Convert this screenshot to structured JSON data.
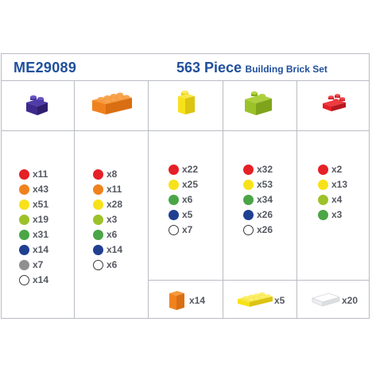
{
  "header": {
    "code": "ME29089",
    "title_big": "563 Piece",
    "title_small": "Building Brick Set"
  },
  "colors": {
    "red": "#e52027",
    "orange": "#f0821e",
    "yellow": "#f7e21a",
    "lime": "#9cc22a",
    "green": "#4aa546",
    "navy": "#1f3f91",
    "gray": "#8f8f8f",
    "white": "#ffffff",
    "purple": "#3e2a8c",
    "title_blue": "#1f4f9c"
  },
  "columns": [
    {
      "brick": "purple-2x2-brick",
      "counts": [
        {
          "color": "red",
          "label": "x11"
        },
        {
          "color": "orange",
          "label": "x43"
        },
        {
          "color": "yellow",
          "label": "x51"
        },
        {
          "color": "lime",
          "label": "x19"
        },
        {
          "color": "green",
          "label": "x31"
        },
        {
          "color": "navy",
          "label": "x14"
        },
        {
          "color": "gray",
          "label": "x7"
        },
        {
          "color": "white",
          "label": "x14"
        }
      ]
    },
    {
      "brick": "orange-2x4-brick",
      "counts": [
        {
          "color": "red",
          "label": "x8"
        },
        {
          "color": "orange",
          "label": "x11"
        },
        {
          "color": "yellow",
          "label": "x28"
        },
        {
          "color": "lime",
          "label": "x3"
        },
        {
          "color": "green",
          "label": "x6"
        },
        {
          "color": "navy",
          "label": "x14"
        },
        {
          "color": "white",
          "label": "x6"
        }
      ]
    },
    {
      "brick": "yellow-1x1-brick",
      "counts": [
        {
          "color": "red",
          "label": "x22"
        },
        {
          "color": "yellow",
          "label": "x25"
        },
        {
          "color": "green",
          "label": "x6"
        },
        {
          "color": "navy",
          "label": "x5"
        },
        {
          "color": "white",
          "label": "x7"
        }
      ]
    },
    {
      "brick": "lime-1x2-brick",
      "counts": [
        {
          "color": "red",
          "label": "x32"
        },
        {
          "color": "yellow",
          "label": "x53"
        },
        {
          "color": "green",
          "label": "x34"
        },
        {
          "color": "navy",
          "label": "x26"
        },
        {
          "color": "white",
          "label": "x26"
        }
      ]
    },
    {
      "brick": "red-2x2-plate",
      "counts": [
        {
          "color": "red",
          "label": "x2"
        },
        {
          "color": "yellow",
          "label": "x13"
        },
        {
          "color": "lime",
          "label": "x4"
        },
        {
          "color": "green",
          "label": "x3"
        }
      ]
    }
  ],
  "extras": [
    {
      "brick": "orange-tall-brick",
      "label": "x14"
    },
    {
      "brick": "yellow-2x4-plate",
      "label": "x5"
    },
    {
      "brick": "white-flat-tile",
      "label": "x20"
    }
  ]
}
